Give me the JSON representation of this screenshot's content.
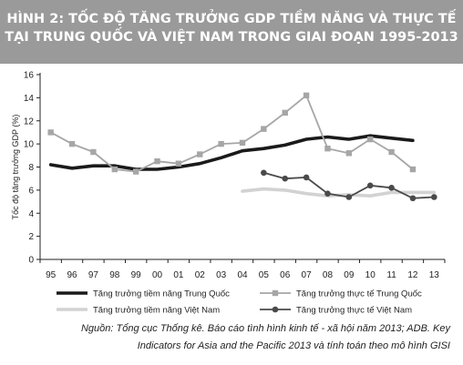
{
  "header": {
    "title_line1": "HÌNH 2: TỐC ĐỘ TĂNG TRƯỞNG GDP TIỀM NĂNG VÀ THỰC TẾ",
    "title_line2": "TẠI TRUNG QUỐC VÀ VIỆT NAM TRONG GIAI ĐOẠN 1995-2013"
  },
  "source": {
    "line1": "Nguồn: Tổng cục Thống kê. Báo cáo tình hình kinh tế - xã hội năm 2013; ADB. Key",
    "line2": "Indicators for Asia and the Pacific 2013 và tính toán theo mô hình GISI"
  },
  "chart_data": {
    "type": "line",
    "title": "HÌNH 2: TỐC ĐỘ TĂNG TRƯỞNG GDP TIỀM NĂNG VÀ THỰC TẾ TẠI TRUNG QUỐC VÀ VIỆT NAM TRONG GIAI ĐOẠN 1995-2013",
    "xlabel": "",
    "ylabel": "Tốc độ tăng trưởng GDP (%)",
    "categories": [
      "95",
      "96",
      "97",
      "98",
      "99",
      "00",
      "01",
      "02",
      "03",
      "04",
      "05",
      "06",
      "07",
      "08",
      "09",
      "10",
      "11",
      "12",
      "13"
    ],
    "yticks": [
      0,
      2,
      4,
      6,
      8,
      10,
      12,
      14,
      16
    ],
    "ylim": [
      0,
      16
    ],
    "grid": false,
    "legend_position": "bottom",
    "series": [
      {
        "name": "Tăng trưởng tiềm năng Trung Quốc",
        "color": "#1a1a1a",
        "style": "thick",
        "marker": "none",
        "values": [
          8.2,
          7.9,
          8.1,
          8.1,
          7.8,
          7.8,
          8.0,
          8.3,
          8.8,
          9.4,
          9.6,
          9.9,
          10.4,
          10.6,
          10.4,
          10.7,
          10.5,
          10.3,
          null
        ]
      },
      {
        "name": "Tăng trưởng thực tế Trung Quốc",
        "color": "#a6a6a6",
        "style": "normal",
        "marker": "square",
        "values": [
          11.0,
          10.0,
          9.3,
          7.8,
          7.6,
          8.5,
          8.3,
          9.1,
          10.0,
          10.1,
          11.3,
          12.7,
          14.2,
          9.6,
          9.2,
          10.4,
          9.3,
          7.8,
          null
        ]
      },
      {
        "name": "Tăng trưởng tiềm năng Việt Nam",
        "color": "#d2d2d2",
        "style": "thick",
        "marker": "none",
        "values": [
          null,
          null,
          null,
          null,
          null,
          null,
          null,
          null,
          null,
          5.9,
          6.1,
          6.0,
          5.7,
          5.5,
          5.6,
          5.5,
          5.8,
          5.8,
          5.8
        ]
      },
      {
        "name": "Tăng trưởng thực tế Việt Nam",
        "color": "#4a4a4a",
        "style": "normal",
        "marker": "circle",
        "values": [
          null,
          null,
          null,
          null,
          null,
          null,
          null,
          null,
          null,
          null,
          7.5,
          7.0,
          7.1,
          5.7,
          5.4,
          6.4,
          6.2,
          5.3,
          5.4
        ]
      }
    ]
  }
}
